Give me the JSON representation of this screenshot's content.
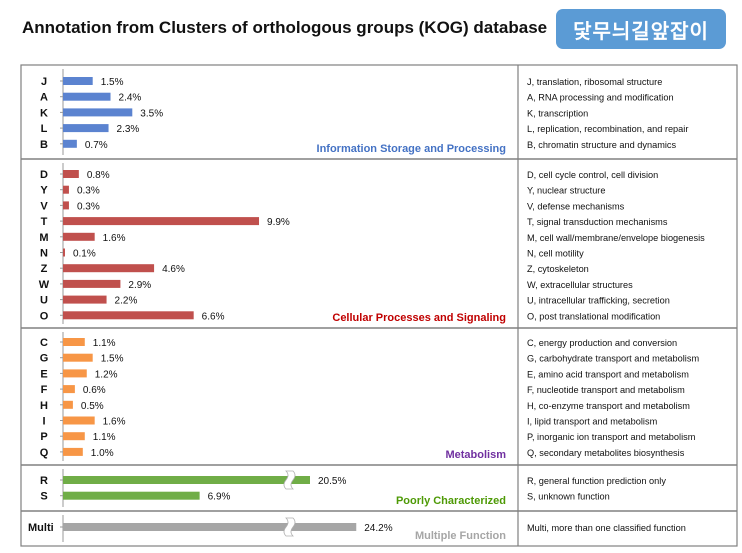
{
  "page": {
    "title": "Annotation from Clusters of orthologous groups (KOG) database",
    "badge": "닻무늬길앞잡이"
  },
  "chart_data": {
    "type": "bar",
    "orientation": "horizontal",
    "value_suffix": "%",
    "axis_break_above": 9.9,
    "groups": [
      {
        "name": "Information Storage and Processing",
        "color": "#4472c4",
        "bar_color": "#5b83d0",
        "categories": [
          "J",
          "A",
          "K",
          "L",
          "B"
        ],
        "values": [
          1.5,
          2.4,
          3.5,
          2.3,
          0.7
        ],
        "descriptions": [
          "J, translation, ribosomal structure",
          "A, RNA processing and modification",
          "K, transcription",
          "L, replication, recombination, and repair",
          "B, chromatin structure and dynamics"
        ]
      },
      {
        "name": "Cellular Processes and Signaling",
        "color": "#c00000",
        "bar_color": "#c0504d",
        "categories": [
          "D",
          "Y",
          "V",
          "T",
          "M",
          "N",
          "Z",
          "W",
          "U",
          "O"
        ],
        "values": [
          0.8,
          0.3,
          0.3,
          9.9,
          1.6,
          0.1,
          4.6,
          2.9,
          2.2,
          6.6
        ],
        "descriptions": [
          "D, cell cycle control, cell division",
          "Y, nuclear structure",
          "V, defense mechanisms",
          "T, signal transduction mechanisms",
          "M, cell wall/membrane/envelope biogenesis",
          "N, cell motility",
          "Z, cytoskeleton",
          "W, extracellular structures",
          "U, intracellular trafficking, secretion",
          "O, post translational modification"
        ]
      },
      {
        "name": "Metabolism",
        "color": "#7030a0",
        "bar_color": "#f79646",
        "categories": [
          "C",
          "G",
          "E",
          "F",
          "H",
          "I",
          "P",
          "Q"
        ],
        "values": [
          1.1,
          1.5,
          1.2,
          0.6,
          0.5,
          1.6,
          1.1,
          1.0
        ],
        "descriptions": [
          "C, energy production and conversion",
          "G, carbohydrate transport and metabolism",
          "E, amino acid transport and metabolism",
          "F, nucleotide transport and metabolism",
          "H, co-enzyme transport and metabolism",
          "I, lipid transport and metabolism",
          "P, inorganic ion transport and metabolism",
          "Q, secondary metabolites biosynthesis"
        ]
      },
      {
        "name": "Poorly Characterized",
        "color": "#4e9a06",
        "bar_color": "#70ad47",
        "categories": [
          "R",
          "S"
        ],
        "values": [
          20.5,
          6.9
        ],
        "descriptions": [
          "R, general function prediction only",
          "S, unknown function"
        ]
      },
      {
        "name": "Multiple Function",
        "color": "#a6a6a6",
        "bar_color": "#a6a6a6",
        "categories": [
          "Multi"
        ],
        "values": [
          24.2
        ],
        "descriptions": [
          "Multi, more than one classified function"
        ]
      }
    ]
  }
}
